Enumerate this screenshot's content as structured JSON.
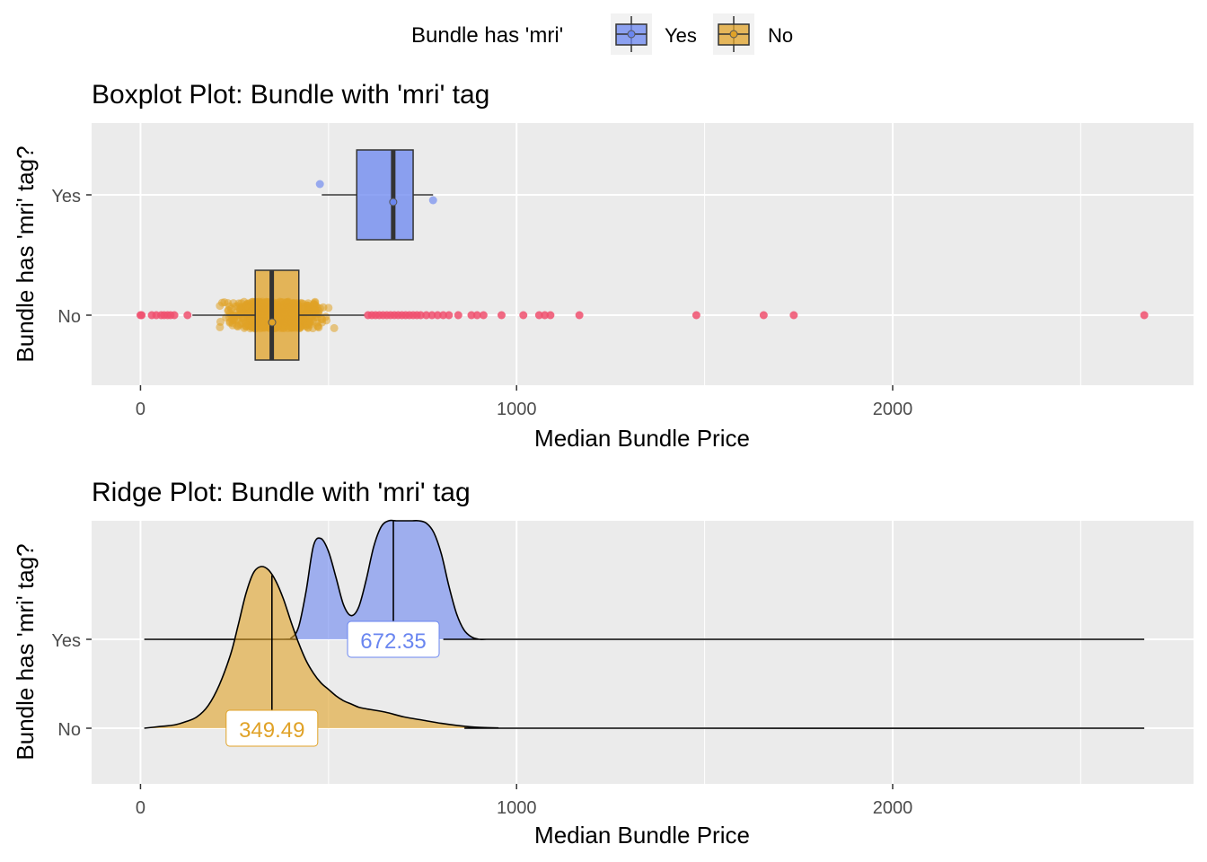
{
  "legend": {
    "title": "Bundle has 'mri'",
    "items": [
      {
        "label": "Yes",
        "color": "#6A86F0"
      },
      {
        "label": "No",
        "color": "#E0A227"
      }
    ]
  },
  "colors": {
    "yes": "#6A86F0",
    "no": "#E0A227",
    "outlier": "#F0506E",
    "panel": "#EBEBEB",
    "grid": "#FFFFFF"
  },
  "chart_data": [
    {
      "type": "boxplot",
      "title": "Boxplot Plot: Bundle with 'mri' tag",
      "xlabel": "Median Bundle Price",
      "ylabel": "Bundle has 'mri' tag?",
      "xlim": [
        -130,
        2800
      ],
      "xticks": [
        0,
        1000,
        2000
      ],
      "xtick_labels": [
        "0",
        "1000",
        "2000"
      ],
      "categories": [
        "Yes",
        "No"
      ],
      "grid": true,
      "boxes": [
        {
          "name": "Yes",
          "whisker_low": 482,
          "q1": 575,
          "median": 672,
          "q3": 725,
          "whisker_high": 778,
          "mean": 672,
          "points": [
            477,
            778
          ]
        },
        {
          "name": "No",
          "whisker_low": 138,
          "q1": 305,
          "median": 349,
          "q3": 421,
          "whisker_high": 597,
          "mean": 350,
          "jitter_range": [
            190,
            535
          ]
        }
      ],
      "outliers": [
        {
          "category": "No",
          "values": [
            0,
            3,
            30,
            42,
            55,
            63,
            72,
            80,
            90,
            125,
            605,
            615,
            625,
            635,
            645,
            655,
            665,
            675,
            685,
            695,
            705,
            715,
            725,
            735,
            745,
            760,
            775,
            790,
            805,
            820,
            845,
            880,
            895,
            912,
            960,
            1018,
            1060,
            1075,
            1090,
            1167,
            1478,
            1657,
            1737,
            2669
          ]
        }
      ]
    },
    {
      "type": "ridgeline",
      "title": "Ridge Plot: Bundle with 'mri' tag",
      "xlabel": "Median Bundle Price",
      "ylabel": "Bundle has 'mri' tag?",
      "xlim": [
        -130,
        2800
      ],
      "xticks": [
        0,
        1000,
        2000
      ],
      "xtick_labels": [
        "0",
        "1000",
        "2000"
      ],
      "categories": [
        "Yes",
        "No"
      ],
      "grid": true,
      "series": [
        {
          "name": "Yes",
          "median": 672.35,
          "median_label": "672.35",
          "x": [
            10,
            380,
            400,
            420,
            440,
            460,
            480,
            500,
            520,
            540,
            560,
            580,
            600,
            620,
            640,
            660,
            680,
            700,
            720,
            740,
            760,
            780,
            800,
            820,
            840,
            860,
            880,
            900,
            920,
            940,
            2669
          ],
          "density": [
            0,
            0,
            0.01,
            0.1,
            0.4,
            0.79,
            0.85,
            0.74,
            0.52,
            0.29,
            0.2,
            0.27,
            0.5,
            0.78,
            0.95,
            1.0,
            1.0,
            1.0,
            1.0,
            1.0,
            0.98,
            0.9,
            0.72,
            0.45,
            0.22,
            0.08,
            0.02,
            0,
            0,
            0,
            0
          ]
        },
        {
          "name": "No",
          "median": 349.49,
          "median_label": "349.49",
          "x": [
            10,
            50,
            90,
            120,
            150,
            180,
            210,
            240,
            260,
            280,
            300,
            320,
            340,
            360,
            380,
            400,
            420,
            440,
            460,
            480,
            500,
            520,
            540,
            560,
            580,
            600,
            650,
            700,
            750,
            800,
            850,
            900,
            950,
            1000,
            2669
          ],
          "density": [
            0,
            0.01,
            0.02,
            0.04,
            0.07,
            0.14,
            0.27,
            0.46,
            0.64,
            0.83,
            0.96,
            1.0,
            0.98,
            0.91,
            0.8,
            0.66,
            0.53,
            0.42,
            0.34,
            0.28,
            0.24,
            0.2,
            0.17,
            0.15,
            0.13,
            0.12,
            0.1,
            0.07,
            0.05,
            0.03,
            0.015,
            0.005,
            0.002,
            0,
            0
          ]
        }
      ]
    }
  ]
}
